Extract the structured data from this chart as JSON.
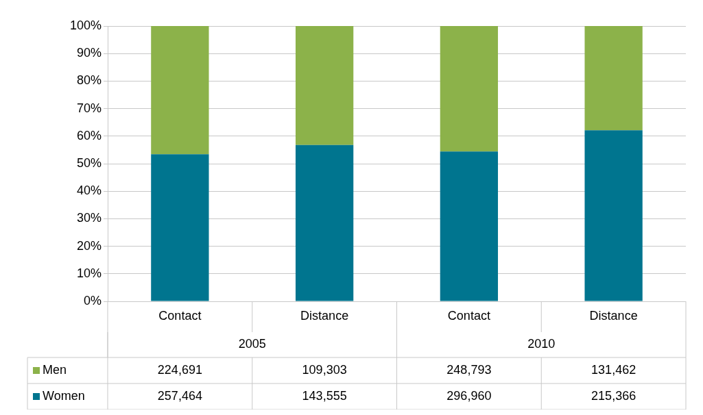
{
  "chart_data": {
    "type": "bar",
    "stacked": true,
    "categories": [
      "Contact",
      "Distance",
      "Contact",
      "Distance"
    ],
    "annotations": [
      "2005",
      "2010",
      "224,691",
      "109,303",
      "248,793",
      "131,462",
      "257,464",
      "143,555",
      "296,960",
      "215,366"
    ],
    "series": [
      {
        "name": "Women",
        "color": "#00758f",
        "values": [
          53.4,
          56.8,
          54.4,
          62.1
        ]
      },
      {
        "name": "Men",
        "color": "#8cb24a",
        "values": [
          46.6,
          43.2,
          45.6,
          37.9
        ]
      }
    ],
    "ylim": [
      0,
      100
    ],
    "yticks": [
      {
        "value": 0,
        "label": "0%"
      },
      {
        "value": 10,
        "label": "10%"
      },
      {
        "value": 20,
        "label": "20%"
      },
      {
        "value": 30,
        "label": "30%"
      },
      {
        "value": 40,
        "label": "40%"
      },
      {
        "value": 50,
        "label": "50%"
      },
      {
        "value": 60,
        "label": "60%"
      },
      {
        "value": 70,
        "label": "70%"
      },
      {
        "value": 80,
        "label": "80%"
      },
      {
        "value": 90,
        "label": "90%"
      },
      {
        "value": 100,
        "label": "100%"
      }
    ],
    "grid": "y",
    "legend": "bottom"
  }
}
